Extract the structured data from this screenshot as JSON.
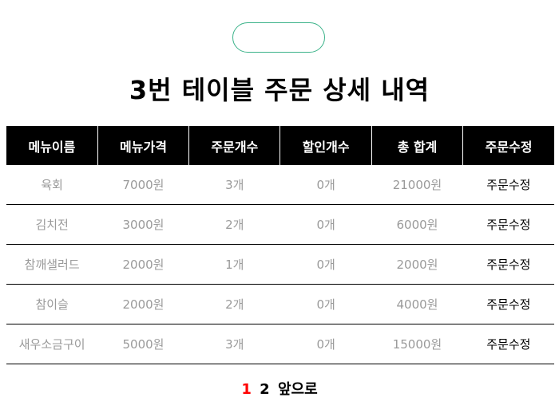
{
  "title": "3번 테이블 주문 상세 내역",
  "columns": [
    "메뉴이름",
    "메뉴가격",
    "주문개수",
    "할인개수",
    "총 합계",
    "주문수정"
  ],
  "rows": [
    {
      "name": "육회",
      "price": "7000원",
      "qty": "3개",
      "discount": "0개",
      "total": "21000원",
      "edit": "주문수정"
    },
    {
      "name": "김치전",
      "price": "3000원",
      "qty": "2개",
      "discount": "0개",
      "total": "6000원",
      "edit": "주문수정"
    },
    {
      "name": "참깨샐러드",
      "price": "2000원",
      "qty": "1개",
      "discount": "0개",
      "total": "2000원",
      "edit": "주문수정"
    },
    {
      "name": "참이슬",
      "price": "2000원",
      "qty": "2개",
      "discount": "0개",
      "total": "4000원",
      "edit": "주문수정"
    },
    {
      "name": "새우소금구이",
      "price": "5000원",
      "qty": "3개",
      "discount": "0개",
      "total": "15000원",
      "edit": "주문수정"
    }
  ],
  "pagination": {
    "page1": "1",
    "page2": "2",
    "next": "앞으로"
  },
  "colors": {
    "accent_pill_border": "#3cb38a",
    "current_page": "#ff0000",
    "header_bg": "#000000"
  }
}
